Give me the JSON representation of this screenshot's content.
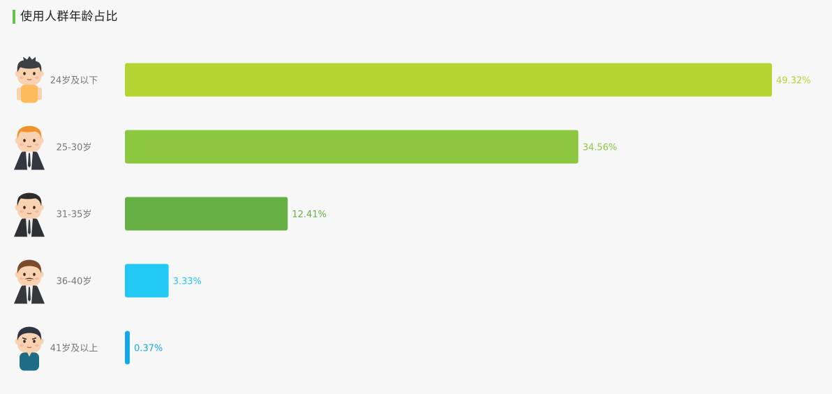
{
  "header": {
    "title": "使用人群年龄占比",
    "accent_color": "#6cc04a"
  },
  "chart_data": {
    "type": "bar",
    "orientation": "horizontal",
    "title": "使用人群年龄占比",
    "categories": [
      "24岁及以下",
      "25-30岁",
      "31-35岁",
      "36-40岁",
      "41岁及以上"
    ],
    "values": [
      49.32,
      34.56,
      12.41,
      3.33,
      0.37
    ],
    "value_labels": [
      "49.32%",
      "34.56%",
      "12.41%",
      "3.33%",
      "0.37%"
    ],
    "colors": [
      "#b3d432",
      "#8dc63f",
      "#66b045",
      "#22c8f5",
      "#13a9e8"
    ],
    "icons": [
      "young-boy-icon",
      "young-man-tie-icon",
      "suit-man-icon",
      "mustache-man-icon",
      "older-man-icon"
    ],
    "xlim": [
      0,
      49.32
    ],
    "grid": false,
    "legend": "none"
  }
}
